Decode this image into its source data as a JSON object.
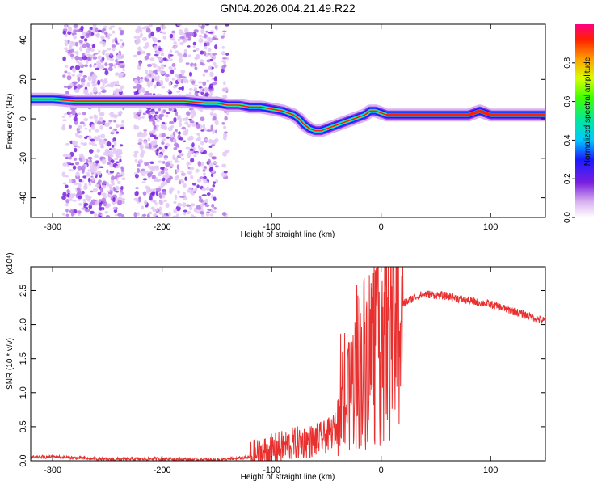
{
  "title": "GN04.2026.004.21.49.R22",
  "chart_data": [
    {
      "type": "heatmap",
      "xlabel": "Height of straight line (km)",
      "ylabel": "Frequency (Hz)",
      "xlim": [
        -320,
        150
      ],
      "ylim": [
        -50,
        48
      ],
      "xticks": [
        -300,
        -200,
        -100,
        0,
        100
      ],
      "yticks": [
        -40,
        -20,
        0,
        20,
        40
      ],
      "colorbar": {
        "label": "Normalized spectral amplitude",
        "range": [
          0,
          1
        ],
        "ticks": [
          0.0,
          0.2,
          0.4,
          0.6,
          0.8
        ]
      },
      "ridge": {
        "x": [
          -320,
          -300,
          -280,
          -260,
          -240,
          -220,
          -200,
          -180,
          -160,
          -150,
          -140,
          -130,
          -120,
          -110,
          -100,
          -90,
          -80,
          -75,
          -70,
          -65,
          -60,
          -55,
          -50,
          -45,
          -40,
          -35,
          -30,
          -25,
          -20,
          -15,
          -10,
          -5,
          0,
          5,
          10,
          20,
          40,
          60,
          80,
          90,
          100,
          120,
          150
        ],
        "y": [
          10,
          10,
          9,
          9,
          9,
          9,
          9,
          9,
          8,
          8,
          7,
          7,
          6,
          6,
          5,
          4,
          2,
          0,
          -3,
          -5,
          -6,
          -6,
          -5,
          -4,
          -3,
          -2,
          -1,
          0,
          1,
          2,
          4,
          4,
          3,
          2,
          2,
          2,
          2,
          2,
          2,
          4,
          2,
          2,
          2
        ]
      }
    },
    {
      "type": "line",
      "xlabel": "Height of straight line (km)",
      "ylabel": "SNR (10 * v/v)",
      "y_multiplier": "(x10⁴)",
      "xlim": [
        -320,
        150
      ],
      "ylim": [
        0,
        2.85
      ],
      "xticks": [
        -300,
        -200,
        -100,
        0,
        100
      ],
      "yticks": [
        0.0,
        0.5,
        1.0,
        1.5,
        2.0,
        2.5
      ],
      "series": [
        {
          "color": "#e8302f",
          "x": [
            -320,
            -300,
            -250,
            -200,
            -150,
            -120,
            -100,
            -80,
            -60,
            -50,
            -40,
            -30,
            -25,
            -20,
            -15,
            -10,
            -5,
            0,
            5,
            10,
            20,
            30,
            40,
            60,
            80,
            100,
            120,
            150
          ],
          "y": [
            0.05,
            0.06,
            0.02,
            0.03,
            0.01,
            0.05,
            0.15,
            0.25,
            0.3,
            0.35,
            0.5,
            0.9,
            1.2,
            1.4,
            1.5,
            1.6,
            1.75,
            1.9,
            2.0,
            2.1,
            2.3,
            2.4,
            2.45,
            2.42,
            2.35,
            2.3,
            2.2,
            2.05
          ]
        }
      ]
    }
  ]
}
